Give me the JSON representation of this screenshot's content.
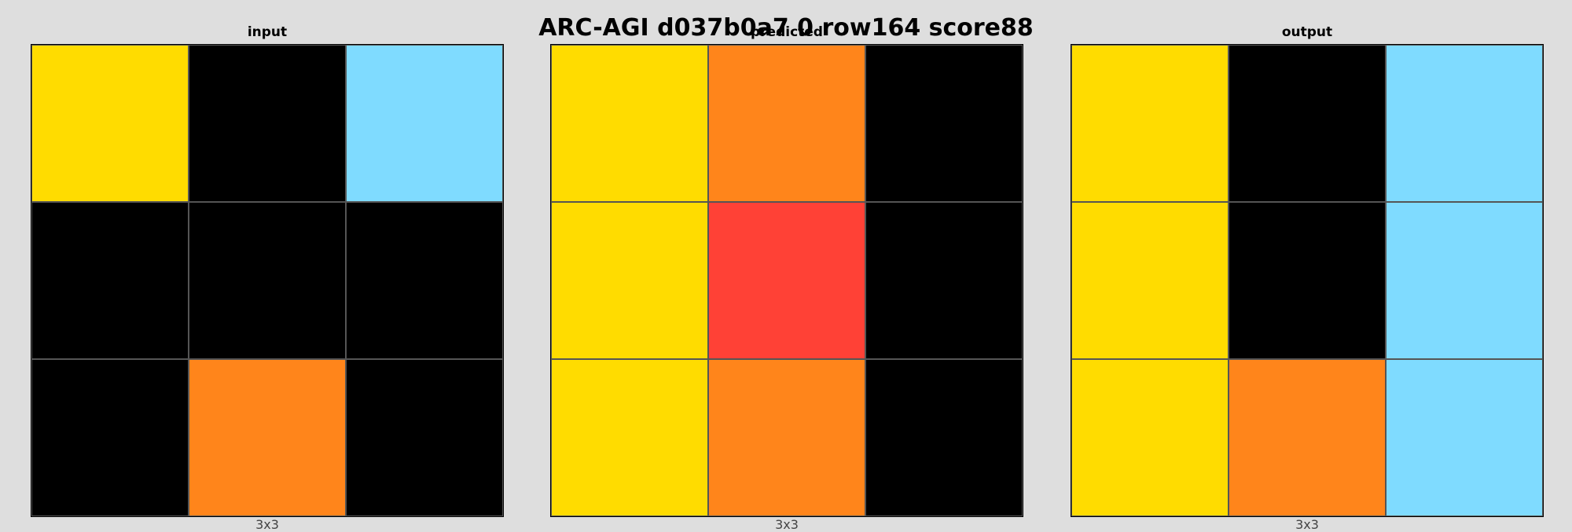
{
  "title": "ARC-AGI d037b0a7 0 row164 score88",
  "palette": {
    "0": "#000000",
    "2": "#ff4136",
    "4": "#ffdc00",
    "7": "#ff851b",
    "8": "#7fdbff"
  },
  "panels": [
    {
      "label": "input",
      "dims": "3x3",
      "grid": [
        [
          4,
          0,
          8
        ],
        [
          0,
          0,
          0
        ],
        [
          0,
          7,
          0
        ]
      ]
    },
    {
      "label": "predicted",
      "dims": "3x3",
      "grid": [
        [
          4,
          7,
          0
        ],
        [
          4,
          2,
          0
        ],
        [
          4,
          7,
          0
        ]
      ]
    },
    {
      "label": "output",
      "dims": "3x3",
      "grid": [
        [
          4,
          0,
          8
        ],
        [
          4,
          0,
          8
        ],
        [
          4,
          7,
          8
        ]
      ]
    }
  ]
}
